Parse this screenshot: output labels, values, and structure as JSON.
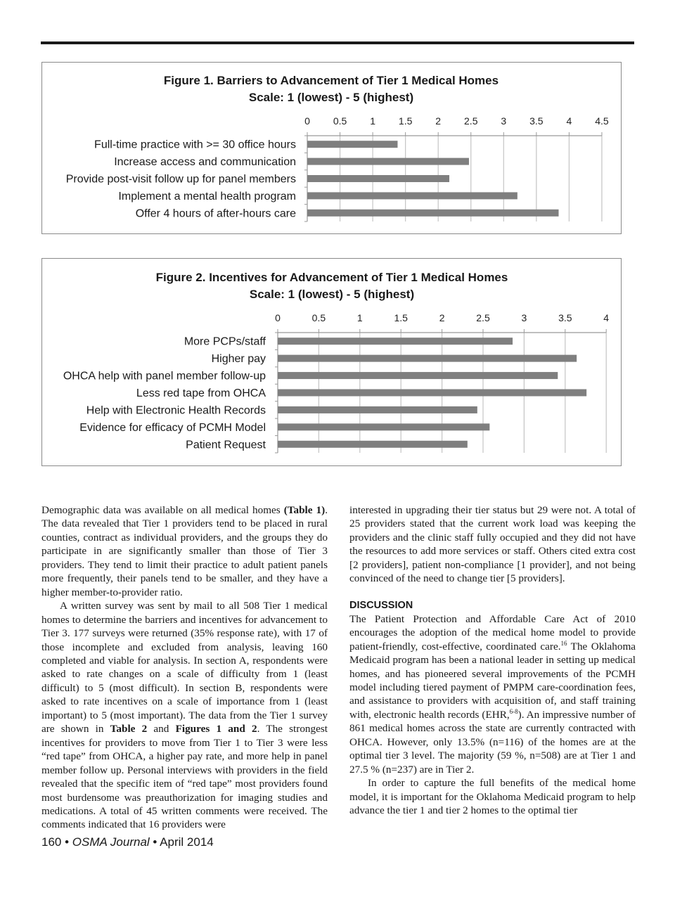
{
  "chart_data": [
    {
      "type": "bar",
      "orientation": "horizontal",
      "title": "Figure 1. Barriers to Advancement of Tier 1 Medical Homes",
      "subtitle": "Scale: 1 (lowest) - 5 (highest)",
      "categories": [
        "Full-time practice with >= 30 office hours",
        "Increase access and communication",
        "Provide post-visit follow up for panel members",
        "Implement a mental health program",
        "Offer 4 hours of after-hours care"
      ],
      "values": [
        1.38,
        2.47,
        2.17,
        3.21,
        3.84
      ],
      "xlim": [
        0,
        4.5
      ],
      "ticks": [
        "0",
        "0.5",
        "1",
        "1.5",
        "2",
        "2.5",
        "3",
        "3.5",
        "4",
        "4.5"
      ],
      "grid": true,
      "bar_color": "#7f7f7f"
    },
    {
      "type": "bar",
      "orientation": "horizontal",
      "title": "Figure 2. Incentives for Advancement of Tier 1 Medical Homes",
      "subtitle": "Scale: 1 (lowest) - 5 (highest)",
      "categories": [
        "More PCPs/staff",
        "Higher pay",
        "OHCA help with panel member follow-up",
        "Less red tape from OHCA",
        "Help with Electronic Health Records",
        "Evidence for efficacy of PCMH Model",
        "Patient Request"
      ],
      "values": [
        2.86,
        3.64,
        3.41,
        3.76,
        2.43,
        2.58,
        2.31
      ],
      "xlim": [
        0,
        4
      ],
      "ticks": [
        "0",
        "0.5",
        "1",
        "1.5",
        "2",
        "2.5",
        "3",
        "3.5",
        "4"
      ],
      "grid": true,
      "bar_color": "#7f7f7f"
    }
  ],
  "left_column": [
    [
      {
        "t": "Demographic data was available on all medical homes "
      },
      {
        "t": "(Table 1)",
        "b": true
      },
      {
        "t": ". The data revealed that Tier 1 providers tend to be placed in rural counties, contract as individual providers, and the groups they do participate in are significantly smaller than those of Tier 3 providers. They tend to limit their practice to adult patient panels more frequently, their panels tend to be smaller, and they have a higher member-to-provider ratio."
      }
    ],
    [
      {
        "t": "A written survey was sent by mail to all 508 Tier 1 medical homes to determine the barriers and incentives for advancement to Tier 3. 177 surveys were returned (35% response rate), with 17 of those incomplete and excluded from analysis, leaving 160 completed and viable for analysis. In section A, respondents were asked to rate changes on a scale of difficulty from 1 (least difficult) to 5 (most difficult). In section B, respondents were asked to rate incentives on a scale of importance from 1 (least important) to 5 (most important). The data from the Tier 1 survey are shown in "
      },
      {
        "t": "Table 2",
        "b": true
      },
      {
        "t": " and "
      },
      {
        "t": "Figures 1 and 2",
        "b": true
      },
      {
        "t": ". The strongest incentives for providers to move from Tier 1 to Tier 3 were less “red tape” from OHCA, a higher pay rate, and more help in panel member follow up. Personal interviews with providers in the field revealed that the specific item of “red tape” most providers found most burdensome was preauthorization for imaging studies and medications. A total of 45 written comments were received. The comments indicated that 16 providers were"
      }
    ]
  ],
  "right_column": {
    "p1": [
      {
        "t": "interested in upgrading their tier status but 29 were not. A total of 25 providers stated that the current work load was keeping the providers and the clinic staff fully occupied and they did not have the resources to add more services or staff.  Others cited extra cost [2 providers], patient non-compliance [1 provider], and not being convinced of the need to change tier [5 providers]."
      }
    ],
    "heading": "DISCUSSION",
    "p2": [
      {
        "t": "The Patient Protection and Affordable Care Act of 2010 encourages the adoption of the medical home model to provide patient-friendly, cost-effective, coordinated care."
      },
      {
        "t": "16",
        "sup": true
      },
      {
        "t": " The Oklahoma Medicaid program has been a national leader in setting up medical homes, and has pioneered several improvements of the PCMH model including tiered payment of PMPM care-coordination fees, and assistance to providers with acquisition of, and staff training with, electronic health records (EHR,"
      },
      {
        "t": "6-8",
        "sup": true
      },
      {
        "t": "). An impressive number of 861 medical homes across the state are currently contracted with OHCA. However, only 13.5% (n=116) of the homes are at the optimal tier 3 level. The majority (59 %, n=508) are at Tier 1 and 27.5 % (n=237) are in Tier 2."
      }
    ],
    "p3": [
      {
        "t": "In order to capture the full benefits of the medical home model, it is important for the Oklahoma Medicaid program to help advance the tier 1 and tier 2 homes to the optimal tier"
      }
    ]
  },
  "footer": {
    "page": "160",
    "journal": "OSMA Journal",
    "date": "April 2014",
    "sep": " • "
  }
}
